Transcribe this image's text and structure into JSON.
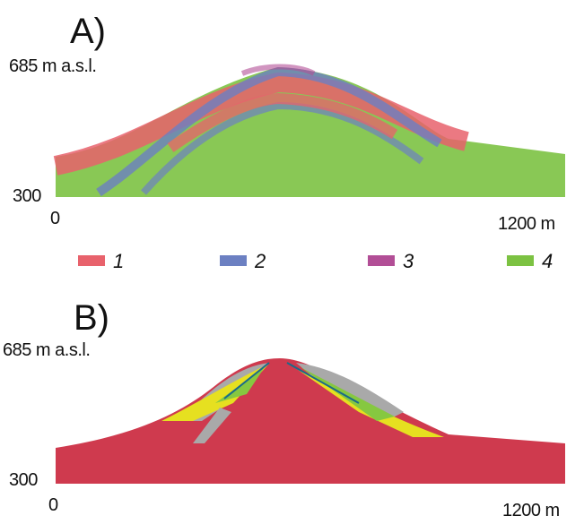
{
  "panels": [
    {
      "label": "A)",
      "top_label": "685 m a.s.l.",
      "bottom_label": "300",
      "x_start": "0",
      "x_end": "1200 m"
    },
    {
      "label": "B)",
      "top_label": "685 m a.s.l.",
      "bottom_label": "300",
      "x_start": "0",
      "x_end": "1200 m"
    }
  ],
  "legend": [
    {
      "label": "1",
      "color": "#e8626c"
    },
    {
      "label": "2",
      "color": "#6c80c2"
    },
    {
      "label": "3",
      "color": "#b24e96"
    },
    {
      "label": "4",
      "color": "#7cc242"
    }
  ]
}
